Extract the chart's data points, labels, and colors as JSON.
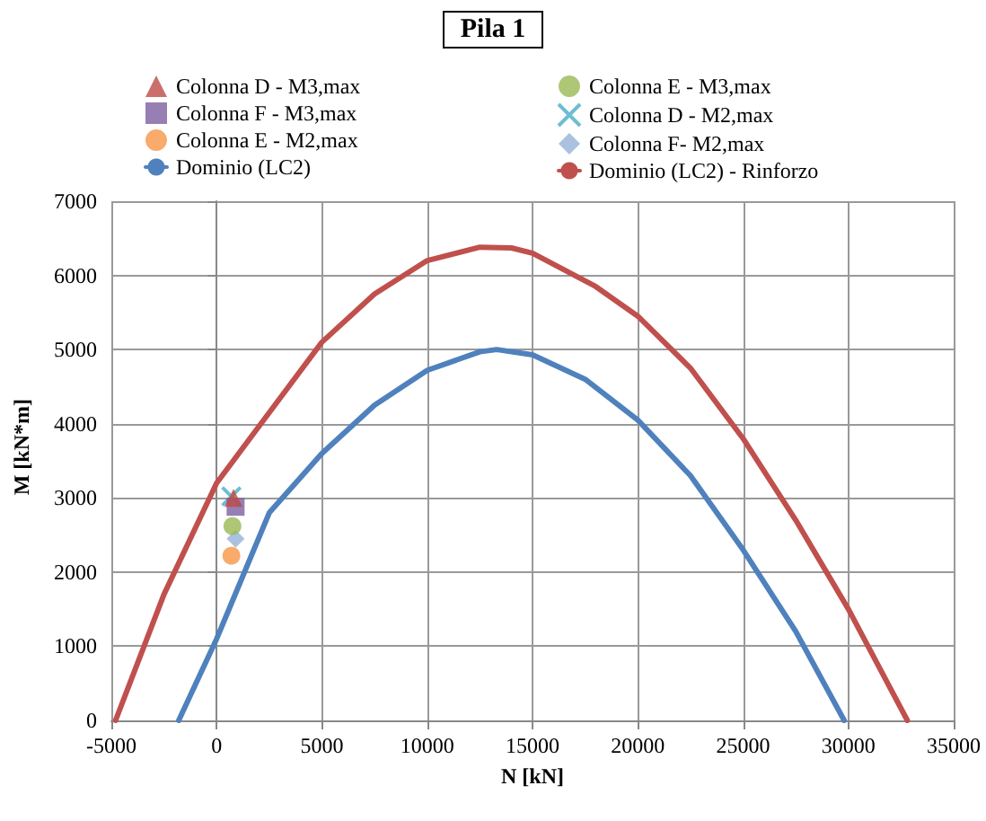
{
  "chart_data": {
    "type": "scatter",
    "title": "Pila 1",
    "xlabel": "N [kN]",
    "ylabel": "M [kN*m]",
    "xlim": [
      -5000,
      35000
    ],
    "xticks": [
      -5000,
      0,
      5000,
      10000,
      15000,
      20000,
      25000,
      30000,
      35000
    ],
    "ylim": [
      0,
      7000
    ],
    "yticks": [
      0,
      1000,
      2000,
      3000,
      4000,
      5000,
      6000,
      7000
    ],
    "grid": true,
    "legend": "top",
    "series": [
      {
        "name": "Colonna D - M3,max",
        "color": "#be4b48",
        "marker": "triangle",
        "x": [
          800
        ],
        "values": [
          3000
        ]
      },
      {
        "name": "Colonna E - M3,max",
        "color": "#98b954",
        "marker": "circle",
        "x": [
          750
        ],
        "values": [
          2620
        ]
      },
      {
        "name": "Colonna F - M3,max",
        "color": "#7d5fa0",
        "marker": "square",
        "x": [
          900
        ],
        "values": [
          2880
        ]
      },
      {
        "name": "Colonna D - M2,max",
        "color": "#4bacc6",
        "marker": "cross",
        "x": [
          700
        ],
        "values": [
          3020
        ]
      },
      {
        "name": "Colonna E - M2,max",
        "color": "#f79646",
        "marker": "circle",
        "x": [
          700
        ],
        "values": [
          2220
        ]
      },
      {
        "name": "Colonna F- M2,max",
        "color": "#95b3d7",
        "marker": "diamond",
        "x": [
          900
        ],
        "values": [
          2450
        ]
      },
      {
        "name": "Dominio (LC2)",
        "type": "line",
        "color": "#4f81bd",
        "marker": "none",
        "x": [
          -1800,
          0,
          2500,
          5000,
          7500,
          10000,
          12500,
          13300,
          15000,
          17500,
          20000,
          22500,
          25000,
          27500,
          29800
        ],
        "values": [
          0,
          1100,
          2800,
          3600,
          4250,
          4720,
          4970,
          5000,
          4930,
          4600,
          4050,
          3300,
          2300,
          1200,
          0
        ]
      },
      {
        "name": "Dominio (LC2) - Rinforzo",
        "type": "line",
        "color": "#c0504d",
        "marker": "none",
        "x": [
          -4800,
          -2500,
          0,
          2500,
          5000,
          7500,
          10000,
          12500,
          14000,
          15000,
          18000,
          20000,
          22500,
          25000,
          27500,
          30000,
          32800
        ],
        "values": [
          0,
          1700,
          3200,
          4150,
          5100,
          5750,
          6200,
          6380,
          6370,
          6300,
          5850,
          5450,
          4750,
          3800,
          2700,
          1500,
          0
        ]
      }
    ]
  }
}
